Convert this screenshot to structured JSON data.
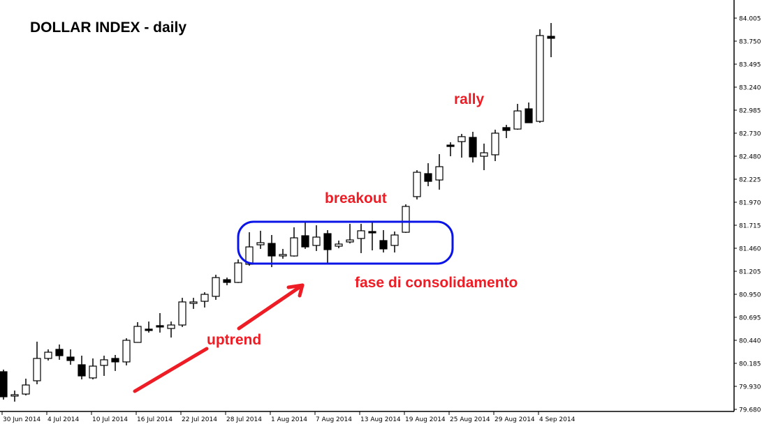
{
  "chart_data": {
    "type": "candlestick",
    "title": "DOLLAR INDEX - daily",
    "ylim": [
      79.68,
      84.005
    ],
    "y_ticks": [
      "84.005",
      "83.750",
      "83.495",
      "83.240",
      "82.985",
      "82.730",
      "82.480",
      "82.225",
      "81.970",
      "81.715",
      "81.460",
      "81.205",
      "80.950",
      "80.695",
      "80.440",
      "80.185",
      "79.930",
      "79.680"
    ],
    "x_ticks": [
      {
        "index": 0,
        "label": "30 Jun 2014"
      },
      {
        "index": 4,
        "label": "4 Jul 2014"
      },
      {
        "index": 8,
        "label": "10 Jul 2014"
      },
      {
        "index": 12,
        "label": "16 Jul 2014"
      },
      {
        "index": 16,
        "label": "22 Jul 2014"
      },
      {
        "index": 20,
        "label": "28 Jul 2014"
      },
      {
        "index": 24,
        "label": "1 Aug 2014"
      },
      {
        "index": 28,
        "label": "7 Aug 2014"
      },
      {
        "index": 32,
        "label": "13 Aug 2014"
      },
      {
        "index": 36,
        "label": "19 Aug 2014"
      },
      {
        "index": 40,
        "label": "25 Aug 2014"
      },
      {
        "index": 44,
        "label": "29 Aug 2014"
      },
      {
        "index": 48,
        "label": "4 Sep 2014"
      }
    ],
    "ohlc_columns": [
      "open",
      "high",
      "low",
      "close"
    ],
    "ohlc": [
      [
        80.136,
        80.159,
        79.831,
        79.862
      ],
      [
        79.87,
        79.93,
        79.809,
        79.885
      ],
      [
        79.892,
        80.06,
        79.877,
        79.991
      ],
      [
        80.037,
        80.464,
        79.999,
        80.281
      ],
      [
        80.281,
        80.38,
        80.258,
        80.349
      ],
      [
        80.38,
        80.433,
        80.266,
        80.311
      ],
      [
        80.296,
        80.38,
        80.212,
        80.258
      ],
      [
        80.212,
        80.311,
        80.052,
        80.09
      ],
      [
        80.068,
        80.281,
        80.052,
        80.197
      ],
      [
        80.205,
        80.311,
        80.09,
        80.266
      ],
      [
        80.281,
        80.319,
        80.144,
        80.243
      ],
      [
        80.243,
        80.502,
        80.205,
        80.479
      ],
      [
        80.456,
        80.677,
        80.456,
        80.631
      ],
      [
        80.601,
        80.684,
        80.563,
        80.593
      ],
      [
        80.639,
        80.776,
        80.563,
        80.624
      ],
      [
        80.608,
        80.684,
        80.509,
        80.646
      ],
      [
        80.646,
        80.943,
        80.624,
        80.898
      ],
      [
        80.882,
        80.943,
        80.822,
        80.898
      ],
      [
        80.905,
        81.004,
        80.837,
        80.981
      ],
      [
        80.959,
        81.195,
        80.921,
        81.164
      ],
      [
        81.141,
        81.164,
        81.08,
        81.111
      ],
      [
        81.111,
        81.362,
        81.105,
        81.324
      ],
      [
        81.309,
        81.659,
        81.294,
        81.499
      ],
      [
        81.522,
        81.675,
        81.477,
        81.545
      ],
      [
        81.537,
        81.629,
        81.278,
        81.4
      ],
      [
        81.4,
        81.477,
        81.37,
        81.416
      ],
      [
        81.4,
        81.713,
        81.393,
        81.598
      ],
      [
        81.621,
        81.766,
        81.477,
        81.499
      ],
      [
        81.515,
        81.735,
        81.454,
        81.606
      ],
      [
        81.644,
        81.682,
        81.324,
        81.469
      ],
      [
        81.507,
        81.568,
        81.484,
        81.53
      ],
      [
        81.553,
        81.751,
        81.537,
        81.575
      ],
      [
        81.591,
        81.751,
        81.431,
        81.675
      ],
      [
        81.667,
        81.766,
        81.461,
        81.659
      ],
      [
        81.568,
        81.682,
        81.438,
        81.477
      ],
      [
        81.515,
        81.667,
        81.438,
        81.629
      ],
      [
        81.659,
        81.964,
        81.652,
        81.941
      ],
      [
        82.048,
        82.337,
        82.017,
        82.314
      ],
      [
        82.299,
        82.413,
        82.162,
        82.215
      ],
      [
        82.23,
        82.512,
        82.124,
        82.375
      ],
      [
        82.611,
        82.642,
        82.489,
        82.604
      ],
      [
        82.649,
        82.733,
        82.474,
        82.703
      ],
      [
        82.695,
        82.756,
        82.421,
        82.482
      ],
      [
        82.489,
        82.627,
        82.337,
        82.527
      ],
      [
        82.505,
        82.779,
        82.436,
        82.741
      ],
      [
        82.802,
        82.832,
        82.687,
        82.771
      ],
      [
        82.786,
        83.061,
        82.779,
        82.984
      ],
      [
        83.007,
        83.076,
        82.855,
        82.855
      ],
      [
        82.87,
        83.876,
        82.855,
        83.807
      ],
      [
        83.799,
        83.944,
        83.571,
        83.777
      ]
    ],
    "annotations": {
      "uptrend": "uptrend",
      "consolidation": "fase di consolidamento",
      "breakout": "breakout",
      "rally": "rally"
    },
    "colors": {
      "bull": "#ffffff",
      "bear": "#000000",
      "annotation": "#ee1c24",
      "box": "#0a14e6"
    }
  }
}
